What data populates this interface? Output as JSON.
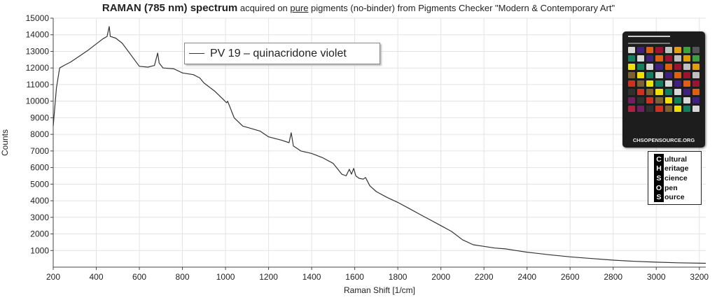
{
  "title": {
    "bold": "RAMAN (785 nm) spectrum",
    "mid": " acquired on ",
    "underlined": "pure",
    "rest": " pigments (no-binder) from Pigments Checker \"Modern & Contemporary Art\""
  },
  "legend": {
    "label": "PV 19 – quinacridone violet"
  },
  "logo": {
    "checker_footer": "CHSOPENSOURCE.ORG",
    "chsos_letters": [
      "C",
      "H",
      "S",
      "O",
      "S"
    ],
    "chsos_words": [
      "ultural",
      "eritage",
      "cience",
      "pen",
      "ource"
    ]
  },
  "chart_data": {
    "type": "line",
    "xlabel": "Raman Shift [1/cm]",
    "ylabel": "Counts",
    "xlim": [
      200,
      3230
    ],
    "ylim": [
      0,
      15000
    ],
    "x_ticks": [
      200,
      400,
      600,
      800,
      1000,
      1200,
      1400,
      1600,
      1800,
      2000,
      2200,
      2400,
      2600,
      2800,
      3000,
      3200
    ],
    "y_ticks": [
      1000,
      2000,
      3000,
      4000,
      5000,
      6000,
      7000,
      8000,
      9000,
      10000,
      11000,
      12000,
      13000,
      14000,
      15000
    ],
    "grid": true,
    "legend_position": "top-left",
    "series": [
      {
        "name": "PV 19 – quinacridone violet",
        "color": "#333333",
        "points": [
          [
            200,
            8500
          ],
          [
            215,
            10800
          ],
          [
            230,
            12000
          ],
          [
            250,
            12150
          ],
          [
            280,
            12350
          ],
          [
            320,
            12700
          ],
          [
            360,
            13050
          ],
          [
            400,
            13450
          ],
          [
            430,
            13750
          ],
          [
            450,
            13900
          ],
          [
            460,
            14500
          ],
          [
            465,
            13900
          ],
          [
            490,
            13800
          ],
          [
            520,
            13500
          ],
          [
            560,
            12800
          ],
          [
            600,
            12100
          ],
          [
            640,
            12050
          ],
          [
            670,
            12150
          ],
          [
            685,
            12900
          ],
          [
            692,
            12300
          ],
          [
            710,
            12000
          ],
          [
            760,
            11950
          ],
          [
            800,
            11700
          ],
          [
            850,
            11600
          ],
          [
            880,
            11400
          ],
          [
            900,
            11100
          ],
          [
            950,
            10600
          ],
          [
            990,
            10100
          ],
          [
            1005,
            9900
          ],
          [
            1010,
            10000
          ],
          [
            1040,
            9000
          ],
          [
            1080,
            8500
          ],
          [
            1120,
            8350
          ],
          [
            1160,
            8200
          ],
          [
            1200,
            7850
          ],
          [
            1260,
            7650
          ],
          [
            1295,
            7500
          ],
          [
            1305,
            8100
          ],
          [
            1315,
            7300
          ],
          [
            1350,
            7000
          ],
          [
            1400,
            6850
          ],
          [
            1450,
            6600
          ],
          [
            1500,
            6250
          ],
          [
            1540,
            5600
          ],
          [
            1560,
            5500
          ],
          [
            1575,
            5900
          ],
          [
            1585,
            5600
          ],
          [
            1595,
            5950
          ],
          [
            1605,
            5500
          ],
          [
            1620,
            5350
          ],
          [
            1640,
            5300
          ],
          [
            1650,
            5400
          ],
          [
            1670,
            4900
          ],
          [
            1700,
            4550
          ],
          [
            1750,
            4200
          ],
          [
            1800,
            3900
          ],
          [
            1850,
            3550
          ],
          [
            1900,
            3200
          ],
          [
            1950,
            2850
          ],
          [
            2000,
            2500
          ],
          [
            2050,
            2150
          ],
          [
            2100,
            1650
          ],
          [
            2150,
            1350
          ],
          [
            2200,
            1250
          ],
          [
            2250,
            1150
          ],
          [
            2300,
            1100
          ],
          [
            2350,
            1000
          ],
          [
            2400,
            900
          ],
          [
            2500,
            750
          ],
          [
            2600,
            620
          ],
          [
            2700,
            520
          ],
          [
            2800,
            420
          ],
          [
            2900,
            350
          ],
          [
            3000,
            300
          ],
          [
            3100,
            260
          ],
          [
            3230,
            230
          ]
        ]
      }
    ]
  }
}
